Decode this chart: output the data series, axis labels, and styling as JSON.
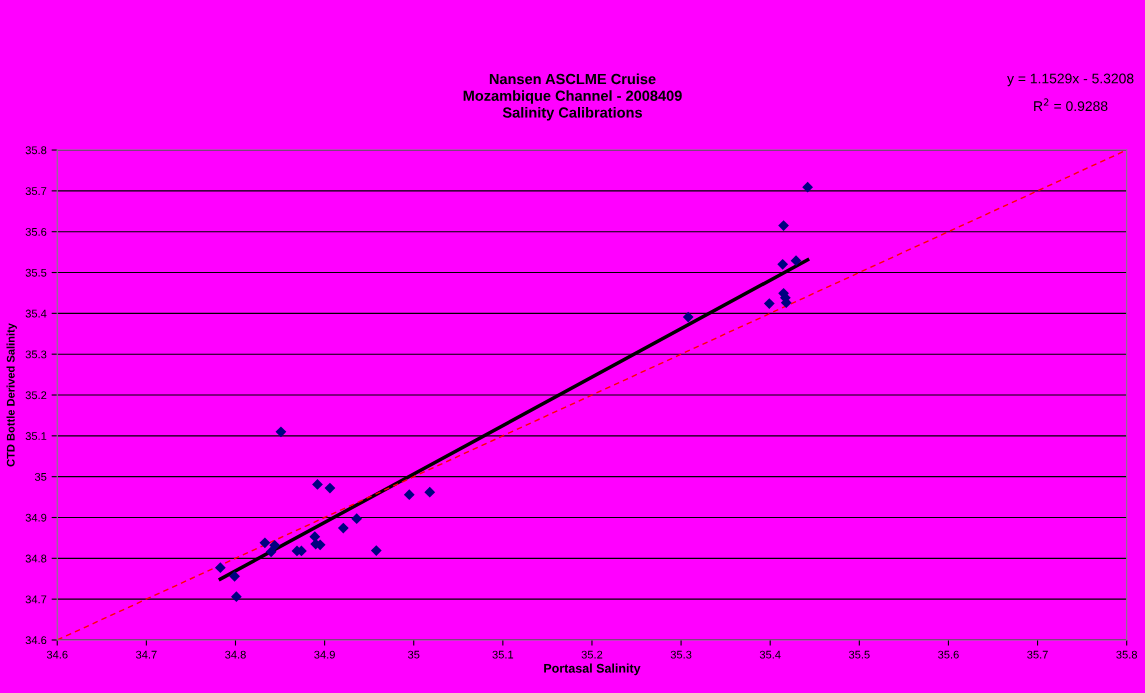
{
  "chart_data": {
    "type": "scatter",
    "title": "Nansen ASCLME Cruise\nMozambique Channel - 2008409\nSalinity Calibrations",
    "xlabel": "Portasal Salinity",
    "ylabel": "CTD Bottle Derived Salinity",
    "annotations": [
      "y = 1.1529x - 5.3208",
      "R$^{2}$ = 0.9288"
    ],
    "series": [
      {
        "color": "#000080",
        "marker": "diamond",
        "x": [
          34.783,
          34.799,
          34.801,
          34.833,
          34.84,
          34.844,
          34.851,
          34.869,
          34.874,
          34.889,
          34.89,
          34.895,
          34.892,
          34.906,
          34.921,
          34.936,
          34.958,
          34.995,
          35.018,
          35.308,
          35.399,
          35.414,
          35.415,
          35.429,
          35.442,
          35.415,
          35.417,
          35.418
        ],
        "values": [
          34.777,
          34.756,
          34.706,
          34.838,
          34.816,
          34.832,
          35.11,
          34.818,
          34.818,
          34.853,
          34.835,
          34.833,
          34.981,
          34.972,
          34.874,
          34.897,
          34.819,
          34.956,
          34.962,
          35.391,
          35.424,
          35.52,
          35.615,
          35.529,
          35.709,
          35.449,
          35.438,
          35.426
        ]
      },
      {
        "type": "line",
        "color": "#000000",
        "line_style": "solid",
        "x": [
          34.783,
          35.442
        ],
        "values": [
          34.749,
          35.531
        ]
      },
      {
        "type": "line",
        "color": "#ff0000",
        "line_style": "dashed",
        "x": [
          34.6,
          35.8
        ],
        "values": [
          34.6,
          35.8
        ]
      }
    ],
    "xlim": [
      34.6,
      35.8
    ],
    "ylim": [
      34.6,
      35.8
    ],
    "xticks": [
      34.6,
      34.7,
      34.8,
      34.9,
      35,
      35.1,
      35.2,
      35.3,
      35.4,
      35.5,
      35.6,
      35.7,
      35.8
    ],
    "yticks": [
      34.6,
      34.7,
      34.8,
      34.9,
      35,
      35.1,
      35.2,
      35.3,
      35.4,
      35.5,
      35.6,
      35.7,
      35.8
    ],
    "grid": "y",
    "legend": false
  }
}
